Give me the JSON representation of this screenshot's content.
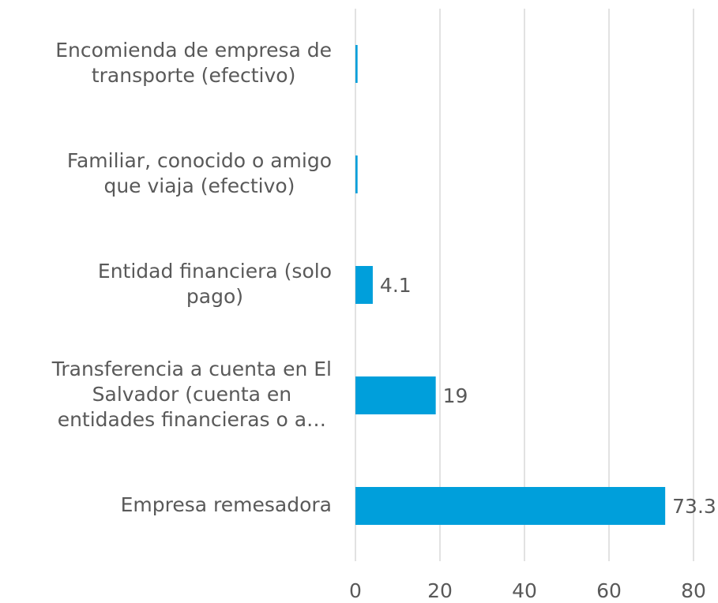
{
  "chart_data": {
    "type": "hbar",
    "categories": [
      "Encomienda de empresa de\ntransporte (efectivo)",
      "Familiar, conocido o amigo\nque viaja (efectivo)",
      "Entidad financiera (solo\npago)",
      "Transferencia a cuenta en El\nSalvador (cuenta en\nentidades financieras o a…",
      "Empresa remesadora"
    ],
    "values": [
      0.5,
      0.5,
      4.1,
      19,
      73.3
    ],
    "value_labels": [
      null,
      null,
      "4.1",
      "19",
      "73.3"
    ],
    "color": "#009fdb",
    "xlim": [
      0,
      80
    ],
    "xticks": [
      0,
      20,
      40,
      60,
      80
    ],
    "grid": true
  }
}
